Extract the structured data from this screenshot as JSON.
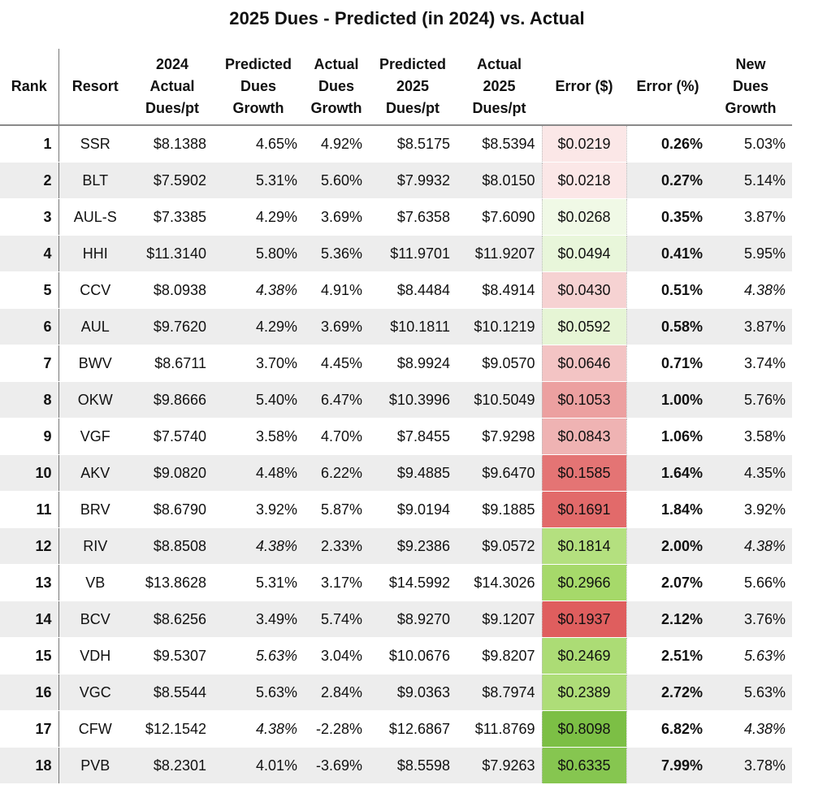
{
  "title": "2025 Dues - Predicted (in 2024) vs. Actual",
  "headers": {
    "rank": [
      "Rank"
    ],
    "resort": [
      "Resort"
    ],
    "actual2024": [
      "2024",
      "Actual",
      "Dues/pt"
    ],
    "pred_growth": [
      "Predicted",
      "Dues",
      "Growth"
    ],
    "actual_growth": [
      "Actual",
      "Dues",
      "Growth"
    ],
    "pred2025": [
      "Predicted",
      "2025",
      "Dues/pt"
    ],
    "actual2025": [
      "Actual",
      "2025",
      "Dues/pt"
    ],
    "err_dollar": [
      "Error ($)"
    ],
    "err_pct": [
      "Error (%)"
    ],
    "new_growth": [
      "New",
      "Dues",
      "Growth"
    ]
  },
  "rows": [
    {
      "rank": "1",
      "resort": "SSR",
      "actual2024": "$8.1388",
      "pred_growth": "4.65%",
      "pred_growth_italic": false,
      "actual_growth": "4.92%",
      "pred2025": "$8.5175",
      "actual2025": "$8.5394",
      "err_dollar": "$0.0219",
      "err_color": "#fbe7e7",
      "err_pct": "0.26%",
      "new_growth": "5.03%",
      "new_growth_italic": false
    },
    {
      "rank": "2",
      "resort": "BLT",
      "actual2024": "$7.5902",
      "pred_growth": "5.31%",
      "pred_growth_italic": false,
      "actual_growth": "5.60%",
      "pred2025": "$7.9932",
      "actual2025": "$8.0150",
      "err_dollar": "$0.0218",
      "err_color": "#fbe7e7",
      "err_pct": "0.27%",
      "new_growth": "5.14%",
      "new_growth_italic": false
    },
    {
      "rank": "3",
      "resort": "AUL-S",
      "actual2024": "$7.3385",
      "pred_growth": "4.29%",
      "pred_growth_italic": false,
      "actual_growth": "3.69%",
      "pred2025": "$7.6358",
      "actual2025": "$7.6090",
      "err_dollar": "$0.0268",
      "err_color": "#f0f9e6",
      "err_pct": "0.35%",
      "new_growth": "3.87%",
      "new_growth_italic": false
    },
    {
      "rank": "4",
      "resort": "HHI",
      "actual2024": "$11.3140",
      "pred_growth": "5.80%",
      "pred_growth_italic": false,
      "actual_growth": "5.36%",
      "pred2025": "$11.9701",
      "actual2025": "$11.9207",
      "err_dollar": "$0.0494",
      "err_color": "#e8f6da",
      "err_pct": "0.41%",
      "new_growth": "5.95%",
      "new_growth_italic": false
    },
    {
      "rank": "5",
      "resort": "CCV",
      "actual2024": "$8.0938",
      "pred_growth": "4.38%",
      "pred_growth_italic": true,
      "actual_growth": "4.91%",
      "pred2025": "$8.4484",
      "actual2025": "$8.4914",
      "err_dollar": "$0.0430",
      "err_color": "#f6d2d2",
      "err_pct": "0.51%",
      "new_growth": "4.38%",
      "new_growth_italic": true
    },
    {
      "rank": "6",
      "resort": "AUL",
      "actual2024": "$9.7620",
      "pred_growth": "4.29%",
      "pred_growth_italic": false,
      "actual_growth": "3.69%",
      "pred2025": "$10.1811",
      "actual2025": "$10.1219",
      "err_dollar": "$0.0592",
      "err_color": "#e6f5d5",
      "err_pct": "0.58%",
      "new_growth": "3.87%",
      "new_growth_italic": false
    },
    {
      "rank": "7",
      "resort": "BWV",
      "actual2024": "$8.6711",
      "pred_growth": "3.70%",
      "pred_growth_italic": false,
      "actual_growth": "4.45%",
      "pred2025": "$8.9924",
      "actual2025": "$9.0570",
      "err_dollar": "$0.0646",
      "err_color": "#f3c4c4",
      "err_pct": "0.71%",
      "new_growth": "3.74%",
      "new_growth_italic": false
    },
    {
      "rank": "8",
      "resort": "OKW",
      "actual2024": "$9.8666",
      "pred_growth": "5.40%",
      "pred_growth_italic": false,
      "actual_growth": "6.47%",
      "pred2025": "$10.3996",
      "actual2025": "$10.5049",
      "err_dollar": "$0.1053",
      "err_color": "#eca0a0",
      "err_pct": "1.00%",
      "new_growth": "5.76%",
      "new_growth_italic": false
    },
    {
      "rank": "9",
      "resort": "VGF",
      "actual2024": "$7.5740",
      "pred_growth": "3.58%",
      "pred_growth_italic": false,
      "actual_growth": "4.70%",
      "pred2025": "$7.8455",
      "actual2025": "$7.9298",
      "err_dollar": "$0.0843",
      "err_color": "#efb3b3",
      "err_pct": "1.06%",
      "new_growth": "3.58%",
      "new_growth_italic": false
    },
    {
      "rank": "10",
      "resort": "AKV",
      "actual2024": "$9.0820",
      "pred_growth": "4.48%",
      "pred_growth_italic": false,
      "actual_growth": "6.22%",
      "pred2025": "$9.4885",
      "actual2025": "$9.6470",
      "err_dollar": "$0.1585",
      "err_color": "#e47474",
      "err_pct": "1.64%",
      "new_growth": "4.35%",
      "new_growth_italic": false
    },
    {
      "rank": "11",
      "resort": "BRV",
      "actual2024": "$8.6790",
      "pred_growth": "3.92%",
      "pred_growth_italic": false,
      "actual_growth": "5.87%",
      "pred2025": "$9.0194",
      "actual2025": "$9.1885",
      "err_dollar": "$0.1691",
      "err_color": "#e26a6a",
      "err_pct": "1.84%",
      "new_growth": "3.92%",
      "new_growth_italic": false
    },
    {
      "rank": "12",
      "resort": "RIV",
      "actual2024": "$8.8508",
      "pred_growth": "4.38%",
      "pred_growth_italic": true,
      "actual_growth": "2.33%",
      "pred2025": "$9.2386",
      "actual2025": "$9.0572",
      "err_dollar": "$0.1814",
      "err_color": "#b4e07f",
      "err_pct": "2.00%",
      "new_growth": "4.38%",
      "new_growth_italic": true
    },
    {
      "rank": "13",
      "resort": "VB",
      "actual2024": "$13.8628",
      "pred_growth": "5.31%",
      "pred_growth_italic": false,
      "actual_growth": "3.17%",
      "pred2025": "$14.5992",
      "actual2025": "$14.3026",
      "err_dollar": "$0.2966",
      "err_color": "#a6d96a",
      "err_pct": "2.07%",
      "new_growth": "5.66%",
      "new_growth_italic": false
    },
    {
      "rank": "14",
      "resort": "BCV",
      "actual2024": "$8.6256",
      "pred_growth": "3.49%",
      "pred_growth_italic": false,
      "actual_growth": "5.74%",
      "pred2025": "$8.9270",
      "actual2025": "$9.1207",
      "err_dollar": "$0.1937",
      "err_color": "#df5e5e",
      "err_pct": "2.12%",
      "new_growth": "3.76%",
      "new_growth_italic": false
    },
    {
      "rank": "15",
      "resort": "VDH",
      "actual2024": "$9.5307",
      "pred_growth": "5.63%",
      "pred_growth_italic": true,
      "actual_growth": "3.04%",
      "pred2025": "$10.0676",
      "actual2025": "$9.8207",
      "err_dollar": "$0.2469",
      "err_color": "#acdc75",
      "err_pct": "2.51%",
      "new_growth": "5.63%",
      "new_growth_italic": true
    },
    {
      "rank": "16",
      "resort": "VGC",
      "actual2024": "$8.5544",
      "pred_growth": "5.63%",
      "pred_growth_italic": false,
      "actual_growth": "2.84%",
      "pred2025": "$9.0363",
      "actual2025": "$8.7974",
      "err_dollar": "$0.2389",
      "err_color": "#aedd78",
      "err_pct": "2.72%",
      "new_growth": "5.63%",
      "new_growth_italic": false
    },
    {
      "rank": "17",
      "resort": "CFW",
      "actual2024": "$12.1542",
      "pred_growth": "4.38%",
      "pred_growth_italic": true,
      "actual_growth": "-2.28%",
      "pred2025": "$12.6867",
      "actual2025": "$11.8769",
      "err_dollar": "$0.8098",
      "err_color": "#7cbf45",
      "err_pct": "6.82%",
      "new_growth": "4.38%",
      "new_growth_italic": true
    },
    {
      "rank": "18",
      "resort": "PVB",
      "actual2024": "$8.2301",
      "pred_growth": "4.01%",
      "pred_growth_italic": false,
      "actual_growth": "-3.69%",
      "pred2025": "$8.5598",
      "actual2025": "$7.9263",
      "err_dollar": "$0.6335",
      "err_color": "#86c650",
      "err_pct": "7.99%",
      "new_growth": "3.78%",
      "new_growth_italic": false
    }
  ],
  "chart_data": {
    "type": "table",
    "title": "2025 Dues - Predicted (in 2024) vs. Actual",
    "columns": [
      "Rank",
      "Resort",
      "2024 Actual Dues/pt",
      "Predicted Dues Growth",
      "Actual Dues Growth",
      "Predicted 2025 Dues/pt",
      "Actual 2025 Dues/pt",
      "Error ($)",
      "Error (%)",
      "New Dues Growth"
    ],
    "resorts": [
      "SSR",
      "BLT",
      "AUL-S",
      "HHI",
      "CCV",
      "AUL",
      "BWV",
      "OKW",
      "VGF",
      "AKV",
      "BRV",
      "RIV",
      "VB",
      "BCV",
      "VDH",
      "VGC",
      "CFW",
      "PVB"
    ],
    "error_pct_values": [
      0.26,
      0.27,
      0.35,
      0.41,
      0.51,
      0.58,
      0.71,
      1.0,
      1.06,
      1.64,
      1.84,
      2.0,
      2.07,
      2.12,
      2.51,
      2.72,
      6.82,
      7.99
    ],
    "error_dollar_values": [
      0.0219,
      0.0218,
      0.0268,
      0.0494,
      0.043,
      0.0592,
      0.0646,
      0.1053,
      0.0843,
      0.1585,
      0.1691,
      0.1814,
      0.2966,
      0.1937,
      0.2469,
      0.2389,
      0.8098,
      0.6335
    ]
  }
}
